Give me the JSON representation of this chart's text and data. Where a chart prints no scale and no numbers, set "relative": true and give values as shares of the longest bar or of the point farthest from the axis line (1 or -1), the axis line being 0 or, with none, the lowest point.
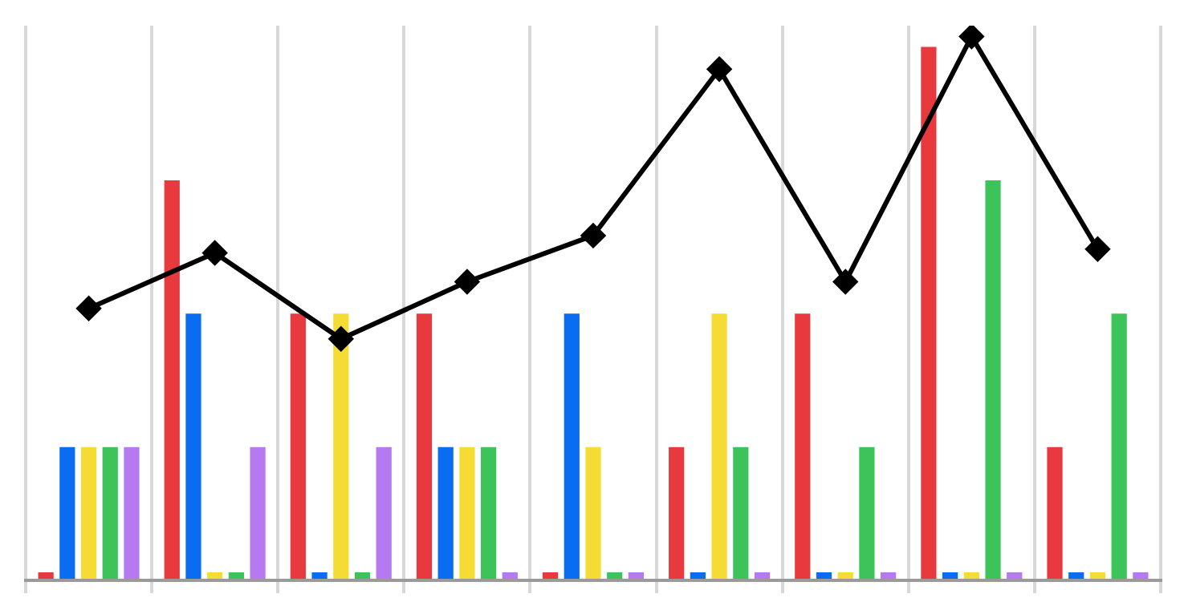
{
  "chart_data": [
    {
      "type": "bar",
      "relative": true,
      "categories": [
        null,
        null,
        null,
        null,
        null,
        null,
        null,
        null,
        null
      ],
      "grid": "x",
      "legend": false,
      "series": [
        {
          "color": "#e8393f",
          "values": [
            0.015,
            0.75,
            0.5,
            0.5,
            0.015,
            0.25,
            0.5,
            1,
            0.25
          ]
        },
        {
          "color": "#0a6cf0",
          "values": [
            0.25,
            0.5,
            0.015,
            0.25,
            0.5,
            0.015,
            0.015,
            0.015,
            0.015
          ]
        },
        {
          "color": "#f5dc35",
          "values": [
            0.25,
            0.015,
            0.5,
            0.25,
            0.25,
            0.5,
            0.015,
            0.015,
            0.015
          ]
        },
        {
          "color": "#3cc45a",
          "values": [
            0.25,
            0.015,
            0.015,
            0.25,
            0.015,
            0.25,
            0.25,
            0.75,
            0.5
          ]
        },
        {
          "color": "#b57af0",
          "values": [
            0.25,
            0.25,
            0.25,
            0.015,
            0.015,
            0.015,
            0.015,
            0.015,
            0.015
          ]
        }
      ]
    },
    {
      "type": "line",
      "relative": true,
      "categories": [
        null,
        null,
        null,
        null,
        null,
        null,
        null,
        null,
        null
      ],
      "legend": false,
      "marker": "diamond",
      "line_style": "solid",
      "series": [
        {
          "color": "#000000",
          "values": [
            0.5,
            0.602,
            0.444,
            0.549,
            0.634,
            0.94,
            0.549,
            1,
            0.609
          ]
        }
      ]
    }
  ]
}
